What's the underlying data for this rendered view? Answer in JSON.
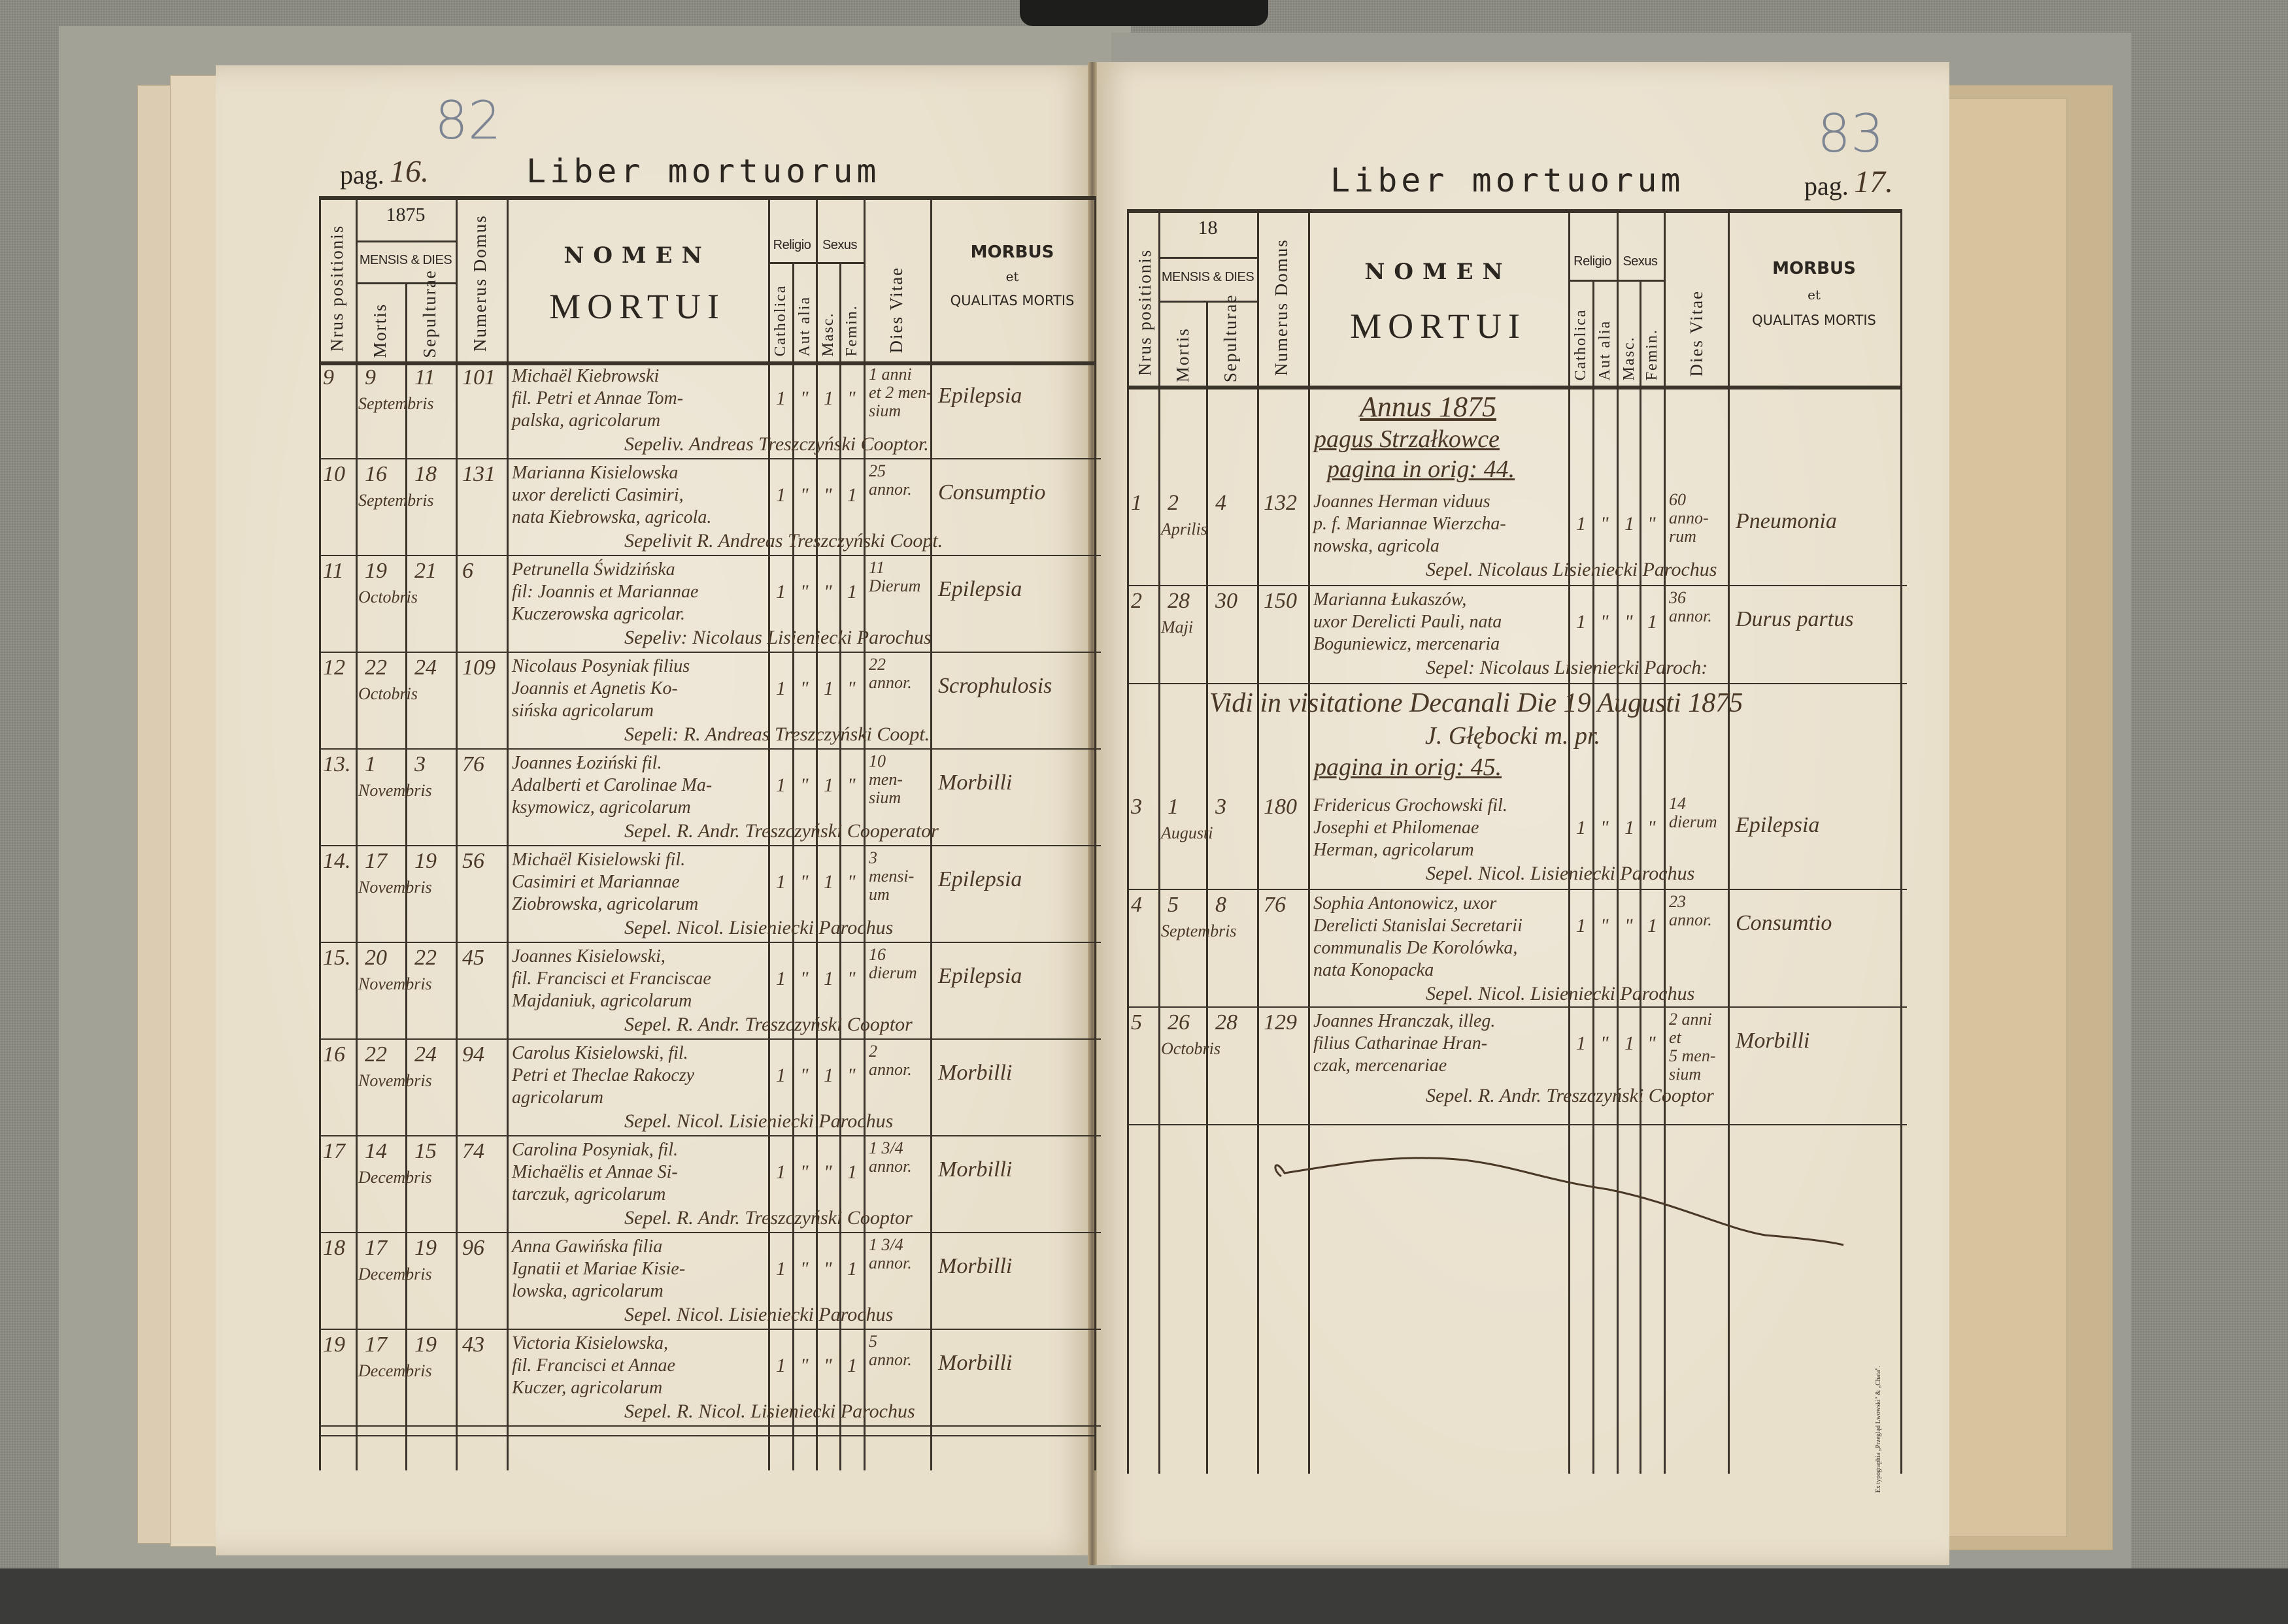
{
  "pages": [
    {
      "side": "left",
      "archive_number": "82",
      "page_prefix": "pag.",
      "page_number": "16.",
      "title": "Liber mortuorum",
      "year": "1875",
      "headers": {
        "nrus": "Nrus positionis",
        "mensis": "MENSIS & DIES",
        "mortis": "Mortis",
        "sepulturae": "Sepulturae",
        "numerus": "Numerus Domus",
        "nomen": "NOMEN",
        "mortui": "MORTUI",
        "religio": "Religio",
        "sexus": "Sexus",
        "catholica": "Catholica",
        "aut_alia": "Aut alia",
        "masc": "Masc.",
        "femin": "Femin.",
        "dies_vitae": "Dies Vitae",
        "morbus": "MORBUS",
        "et": "et",
        "qualitas": "QUALITAS MORTIS"
      },
      "entries": [
        {
          "nr": "9",
          "mortis": "9",
          "sepulturae": "11",
          "month": "Septembris",
          "domus": "101",
          "name": [
            "Michaël Kiebrowski",
            "fil. Petri et Annae Tom-",
            "palska, agricolarum"
          ],
          "catholica": "1",
          "aut_alia": "\"",
          "masc": "1",
          "femin": "\"",
          "age": [
            "1 anni",
            "et 2 men-",
            "sium"
          ],
          "morbus": "Epilepsia",
          "sepelivit": "Sepeliv. Andreas Treszczyński Cooptor."
        },
        {
          "nr": "10",
          "mortis": "16",
          "sepulturae": "18",
          "month": "Septembris",
          "domus": "131",
          "name": [
            "Marianna Kisielowska",
            "uxor derelicti Casimiri,",
            "nata Kiebrowska, agricola."
          ],
          "catholica": "1",
          "aut_alia": "\"",
          "masc": "\"",
          "femin": "1",
          "age": [
            "25",
            "annor."
          ],
          "morbus": "Consumptio",
          "sepelivit": "Sepelivit R. Andreas Treszczyński Coopt."
        },
        {
          "nr": "11",
          "mortis": "19",
          "sepulturae": "21",
          "month": "Octobris",
          "domus": "6",
          "name": [
            "Petrunella Świdzińska",
            "fil: Joannis et Mariannae",
            "Kuczerowska agricolar."
          ],
          "catholica": "1",
          "aut_alia": "\"",
          "masc": "\"",
          "femin": "1",
          "age": [
            "11",
            "Dierum"
          ],
          "morbus": "Epilepsia",
          "sepelivit": "Sepeliv: Nicolaus Lisieniecki Parochus"
        },
        {
          "nr": "12",
          "mortis": "22",
          "sepulturae": "24",
          "month": "Octobris",
          "domus": "109",
          "name": [
            "Nicolaus Posyniak filius",
            "Joannis et Agnetis Ko-",
            "sińska agricolarum"
          ],
          "catholica": "1",
          "aut_alia": "\"",
          "masc": "1",
          "femin": "\"",
          "age": [
            "22",
            "annor."
          ],
          "morbus": "Scrophulosis",
          "sepelivit": "Sepeli: R. Andreas Treszczyński Coopt."
        },
        {
          "nr": "13.",
          "mortis": "1",
          "sepulturae": "3",
          "month": "Novembris",
          "domus": "76",
          "name": [
            "Joannes Łoziński fil.",
            "Adalberti et Carolinae Ma-",
            "ksymowicz, agricolarum"
          ],
          "catholica": "1",
          "aut_alia": "\"",
          "masc": "1",
          "femin": "\"",
          "age": [
            "10",
            "men-",
            "sium"
          ],
          "morbus": "Morbilli",
          "sepelivit": "Sepel. R. Andr. Treszczyński Cooperator"
        },
        {
          "nr": "14.",
          "mortis": "17",
          "sepulturae": "19",
          "month": "Novembris",
          "domus": "56",
          "name": [
            "Michaël Kisielowski fil.",
            "Casimiri et Mariannae",
            "Ziobrowska, agricolarum"
          ],
          "catholica": "1",
          "aut_alia": "\"",
          "masc": "1",
          "femin": "\"",
          "age": [
            "3",
            "mensi-",
            "um"
          ],
          "morbus": "Epilepsia",
          "sepelivit": "Sepel. Nicol. Lisieniecki Parochus"
        },
        {
          "nr": "15.",
          "mortis": "20",
          "sepulturae": "22",
          "month": "Novembris",
          "domus": "45",
          "name": [
            "Joannes Kisielowski,",
            "fil. Francisci et Franciscae",
            "Majdaniuk, agricolarum"
          ],
          "catholica": "1",
          "aut_alia": "\"",
          "masc": "1",
          "femin": "\"",
          "age": [
            "16",
            "dierum"
          ],
          "morbus": "Epilepsia",
          "sepelivit": "Sepel. R. Andr. Treszczyński Cooptor"
        },
        {
          "nr": "16",
          "mortis": "22",
          "sepulturae": "24",
          "month": "Novembris",
          "domus": "94",
          "name": [
            "Carolus Kisielowski, fil.",
            "Petri et Theclae Rakoczy",
            "agricolarum"
          ],
          "catholica": "1",
          "aut_alia": "\"",
          "masc": "1",
          "femin": "\"",
          "age": [
            "2",
            "annor."
          ],
          "morbus": "Morbilli",
          "sepelivit": "Sepel. Nicol. Lisieniecki Parochus"
        },
        {
          "nr": "17",
          "mortis": "14",
          "sepulturae": "15",
          "month": "Decembris",
          "domus": "74",
          "name": [
            "Carolina Posyniak, fil.",
            "Michaëlis et Annae Si-",
            "tarczuk, agricolarum"
          ],
          "catholica": "1",
          "aut_alia": "\"",
          "masc": "\"",
          "femin": "1",
          "age": [
            "1 3/4",
            "annor."
          ],
          "morbus": "Morbilli",
          "sepelivit": "Sepel. R. Andr. Treszczyński Cooptor"
        },
        {
          "nr": "18",
          "mortis": "17",
          "sepulturae": "19",
          "month": "Decembris",
          "domus": "96",
          "name": [
            "Anna Gawińska filia",
            "Ignatii et Mariae Kisie-",
            "lowska, agricolarum"
          ],
          "catholica": "1",
          "aut_alia": "\"",
          "masc": "\"",
          "femin": "1",
          "age": [
            "1 3/4",
            "annor."
          ],
          "morbus": "Morbilli",
          "sepelivit": "Sepel. Nicol. Lisieniecki Parochus"
        },
        {
          "nr": "19",
          "mortis": "17",
          "sepulturae": "19",
          "month": "Decembris",
          "domus": "43",
          "name": [
            "Victoria Kisielowska,",
            "fil. Francisci et Annae",
            "Kuczer, agricolarum"
          ],
          "catholica": "1",
          "aut_alia": "\"",
          "masc": "\"",
          "femin": "1",
          "age": [
            "5",
            "annor."
          ],
          "morbus": "Morbilli",
          "sepelivit": "Sepel. R. Nicol. Lisieniecki Parochus"
        }
      ]
    },
    {
      "side": "right",
      "archive_number": "83",
      "page_prefix": "pag.",
      "page_number": "17.",
      "title": "Liber mortuorum",
      "year": "18",
      "headers": {
        "nrus": "Nrus positionis",
        "mensis": "MENSIS & DIES",
        "mortis": "Mortis",
        "sepulturae": "Sepulturae",
        "numerus": "Numerus Domus",
        "nomen": "NOMEN",
        "mortui": "MORTUI",
        "religio": "Religio",
        "sexus": "Sexus",
        "catholica": "Catholica",
        "aut_alia": "Aut alia",
        "masc": "Masc.",
        "femin": "Femin.",
        "dies_vitae": "Dies Vitae",
        "morbus": "MORBUS",
        "et": "et",
        "qualitas": "QUALITAS MORTIS"
      },
      "annotations": {
        "annus": "Annus 1875",
        "pagus": "pagus Strzałkowce",
        "pagina_44": "pagina in orig: 44.",
        "visitation": "Vidi in visitatione Decanali Die 19 Augusti 1875",
        "visitation_sign": "J. Głębocki m. pr.",
        "pagina_45": "pagina in orig: 45.",
        "printer": "Ex typographia „Przegląd Lwowski\" & „Chata\"."
      },
      "entries": [
        {
          "nr": "1",
          "mortis": "2",
          "sepulturae": "4",
          "month": "Aprilis",
          "domus": "132",
          "name": [
            "Joannes Herman viduus",
            "p. f. Mariannae Wierzcha-",
            "nowska, agricola"
          ],
          "catholica": "1",
          "aut_alia": "\"",
          "masc": "1",
          "femin": "\"",
          "age": [
            "60",
            "anno-",
            "rum"
          ],
          "morbus": "Pneumonia",
          "sepelivit": "Sepel. Nicolaus Lisieniecki Parochus"
        },
        {
          "nr": "2",
          "mortis": "28",
          "sepulturae": "30",
          "month": "Maji",
          "domus": "150",
          "name": [
            "Marianna Łukaszów,",
            "uxor Derelicti Pauli, nata",
            "Boguniewicz, mercenaria"
          ],
          "catholica": "1",
          "aut_alia": "\"",
          "masc": "\"",
          "femin": "1",
          "age": [
            "36",
            "annor."
          ],
          "morbus": "Durus partus",
          "sepelivit": "Sepel: Nicolaus Lisieniecki Paroch:"
        },
        {
          "nr": "3",
          "mortis": "1",
          "sepulturae": "3",
          "month": "Augusti",
          "domus": "180",
          "name": [
            "Fridericus Grochowski fil.",
            "Josephi et Philomenae",
            "Herman, agricolarum"
          ],
          "catholica": "1",
          "aut_alia": "\"",
          "masc": "1",
          "femin": "\"",
          "age": [
            "14",
            "dierum"
          ],
          "morbus": "Epilepsia",
          "sepelivit": "Sepel. Nicol. Lisieniecki Parochus"
        },
        {
          "nr": "4",
          "mortis": "5",
          "sepulturae": "8",
          "month": "Septembris",
          "domus": "76",
          "name": [
            "Sophia Antonowicz, uxor",
            "Derelicti Stanislai Secretarii",
            "communalis De Korolówka,",
            "nata Konopacka"
          ],
          "catholica": "1",
          "aut_alia": "\"",
          "masc": "\"",
          "femin": "1",
          "age": [
            "23",
            "annor."
          ],
          "morbus": "Consumtio",
          "sepelivit": "Sepel. Nicol. Lisieniecki Parochus"
        },
        {
          "nr": "5",
          "mortis": "26",
          "sepulturae": "28",
          "month": "Octobris",
          "domus": "129",
          "name": [
            "Joannes Hranczak, illeg.",
            "filius Catharinae Hran-",
            "czak, mercenariae"
          ],
          "catholica": "1",
          "aut_alia": "\"",
          "masc": "1",
          "femin": "\"",
          "age": [
            "2 anni",
            "et",
            "5 men-",
            "sium"
          ],
          "morbus": "Morbilli",
          "sepelivit": "Sepel. R. Andr. Treszczyński Cooptor"
        }
      ]
    }
  ]
}
